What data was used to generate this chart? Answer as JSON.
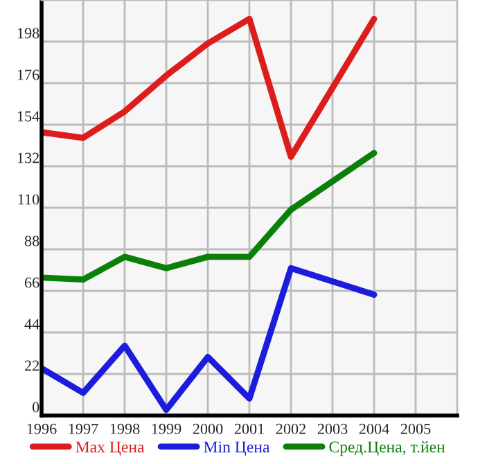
{
  "chart_data": {
    "type": "line",
    "x": [
      1996,
      1997,
      1998,
      1999,
      2000,
      2001,
      2002,
      2004
    ],
    "series": [
      {
        "name": "Max Цена",
        "color": "#dd1c1c",
        "values": [
          150,
          147,
          161,
          180,
          197,
          210,
          137,
          210
        ]
      },
      {
        "name": "Min Цена",
        "color": "#1c1cdd",
        "values": [
          25,
          12,
          37,
          3,
          31,
          9,
          78,
          64
        ]
      },
      {
        "name": "Сред.Цена, т.йен",
        "color": "#0a800a",
        "values": [
          73,
          72,
          84,
          78,
          84,
          84,
          109,
          139
        ]
      }
    ],
    "xlim": [
      1996,
      2006
    ],
    "xticks": [
      1996,
      1997,
      1998,
      1999,
      2000,
      2001,
      2002,
      2003,
      2004,
      2005
    ],
    "ylim": [
      0,
      220
    ],
    "yticks": [
      0,
      22,
      44,
      66,
      88,
      110,
      132,
      154,
      176,
      198
    ],
    "grid": true,
    "legend": "bottom",
    "marker": "none",
    "line_style": "solid"
  }
}
